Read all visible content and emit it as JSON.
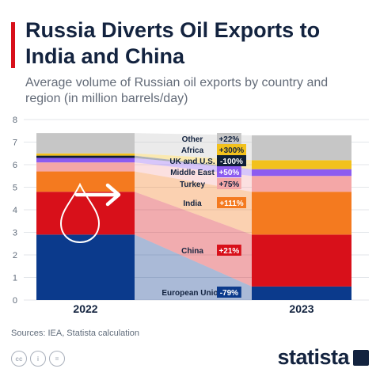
{
  "header": {
    "title": "Russia Diverts Oil Exports to India and China",
    "subtitle": "Average volume of Russian oil exports by country and region (in million barrels/day)",
    "accent_color": "#d8101a"
  },
  "footer": {
    "source": "Sources: IEA, Statista calculation",
    "brand": "statista",
    "license_icons": [
      "cc-icon",
      "by-icon",
      "nd-icon"
    ]
  },
  "chart_data": {
    "type": "bar",
    "stacked": true,
    "categories": [
      "2022",
      "2023"
    ],
    "ylim": [
      0,
      8
    ],
    "yticks": [
      0,
      1,
      2,
      3,
      4,
      5,
      6,
      7,
      8
    ],
    "grid": true,
    "series": [
      {
        "name": "European Union",
        "change": "-79%",
        "color": "#0b3a8c",
        "values": [
          2.9,
          0.6
        ]
      },
      {
        "name": "China",
        "change": "+21%",
        "color": "#d8101a",
        "values": [
          1.9,
          2.3
        ]
      },
      {
        "name": "India",
        "change": "+111%",
        "color": "#f47a1f",
        "values": [
          0.9,
          1.9
        ]
      },
      {
        "name": "Turkey",
        "change": "+75%",
        "color": "#f4a7a7",
        "values": [
          0.4,
          0.7
        ]
      },
      {
        "name": "Middle East",
        "change": "+50%",
        "color": "#8c5cf0",
        "values": [
          0.2,
          0.3
        ]
      },
      {
        "name": "UK and U.S.",
        "change": "-100%",
        "color": "#0e1e36",
        "values": [
          0.1,
          0.0
        ]
      },
      {
        "name": "Africa",
        "change": "+300%",
        "color": "#f2c11d",
        "values": [
          0.1,
          0.4
        ]
      },
      {
        "name": "Other",
        "change": "+22%",
        "color": "#c6c6c6",
        "values": [
          0.9,
          1.1
        ]
      }
    ],
    "annotation_icon": "oil-drop-arrow-icon"
  }
}
